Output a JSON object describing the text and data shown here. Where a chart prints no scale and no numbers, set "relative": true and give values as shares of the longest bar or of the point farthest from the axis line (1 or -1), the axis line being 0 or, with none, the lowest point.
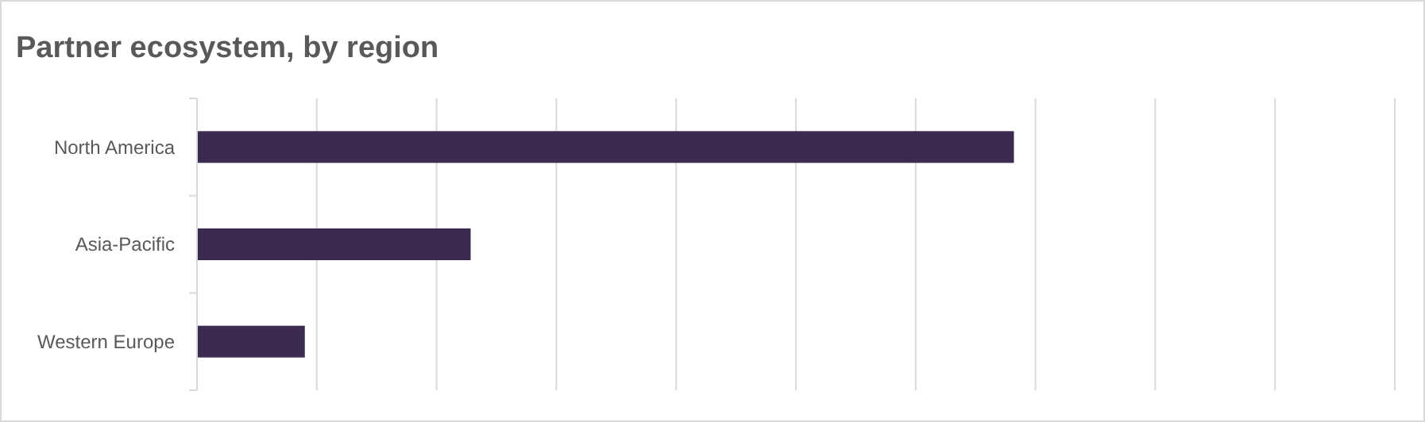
{
  "chart_data": {
    "type": "bar",
    "orientation": "horizontal",
    "relative": true,
    "title": "Partner ecosystem, by region",
    "categories": [
      "North America",
      "Asia-Pacific",
      "Western Europe"
    ],
    "values": [
      1,
      0.335,
      0.132
    ],
    "color": "#3b2b50",
    "grid": "x"
  }
}
